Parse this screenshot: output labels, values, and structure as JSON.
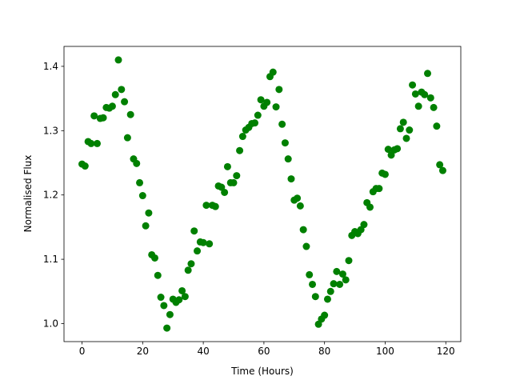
{
  "chart_data": {
    "type": "scatter",
    "x_label": "Time (Hours)",
    "y_label": "Normalised Flux",
    "color": "#008000",
    "x": [
      0,
      1,
      2,
      3,
      4,
      5,
      6,
      7,
      8,
      9,
      10,
      11,
      12,
      13,
      14,
      15,
      16,
      17,
      18,
      19,
      20,
      21,
      22,
      23,
      24,
      25,
      26,
      27,
      28,
      29,
      30,
      31,
      32,
      33,
      34,
      35,
      36,
      37,
      38,
      39,
      40,
      41,
      42,
      43,
      44,
      45,
      46,
      47,
      48,
      49,
      50,
      51,
      52,
      53,
      54,
      55,
      56,
      57,
      58,
      59,
      60,
      61,
      62,
      63,
      64,
      65,
      66,
      67,
      68,
      69,
      70,
      71,
      72,
      73,
      74,
      75,
      76,
      77,
      78,
      79,
      80,
      81,
      82,
      83,
      84,
      85,
      86,
      87,
      88,
      89,
      90,
      91,
      92,
      93,
      94,
      95,
      96,
      97,
      98,
      99,
      100,
      101,
      102,
      103,
      104,
      105,
      106,
      107,
      108,
      109,
      110,
      111,
      112,
      113,
      114,
      115,
      116,
      117,
      118,
      119
    ],
    "values": [
      1.248,
      1.245,
      1.283,
      1.28,
      1.323,
      1.28,
      1.319,
      1.32,
      1.336,
      1.335,
      1.338,
      1.356,
      1.41,
      1.364,
      1.345,
      1.289,
      1.325,
      1.256,
      1.249,
      1.219,
      1.199,
      1.152,
      1.172,
      1.107,
      1.102,
      1.075,
      1.041,
      1.028,
      0.993,
      1.014,
      1.038,
      1.033,
      1.037,
      1.051,
      1.042,
      1.083,
      1.093,
      1.144,
      1.113,
      1.127,
      1.126,
      1.184,
      1.124,
      1.184,
      1.182,
      1.214,
      1.212,
      1.204,
      1.244,
      1.219,
      1.219,
      1.23,
      1.269,
      1.291,
      1.301,
      1.305,
      1.311,
      1.312,
      1.324,
      1.348,
      1.338,
      1.344,
      1.384,
      1.391,
      1.337,
      1.364,
      1.31,
      1.281,
      1.256,
      1.225,
      1.192,
      1.195,
      1.183,
      1.146,
      1.12,
      1.076,
      1.061,
      1.042,
      0.999,
      1.007,
      1.013,
      1.038,
      1.05,
      1.062,
      1.081,
      1.061,
      1.077,
      1.068,
      1.098,
      1.137,
      1.143,
      1.14,
      1.146,
      1.154,
      1.188,
      1.181,
      1.205,
      1.21,
      1.21,
      1.234,
      1.232,
      1.271,
      1.262,
      1.27,
      1.272,
      1.303,
      1.313,
      1.288,
      1.301,
      1.371,
      1.357,
      1.338,
      1.36,
      1.356,
      1.389,
      1.351,
      1.336,
      1.307,
      1.247,
      1.238
    ],
    "xlim": [
      -5.95,
      124.95
    ],
    "xticks": [
      0,
      20,
      40,
      60,
      80,
      100,
      120
    ],
    "ylim": [
      0.972,
      1.431
    ],
    "yticks": [
      {
        "value": 1,
        "label": "1.0"
      },
      1.1,
      1.2,
      1.3,
      1.4
    ]
  }
}
